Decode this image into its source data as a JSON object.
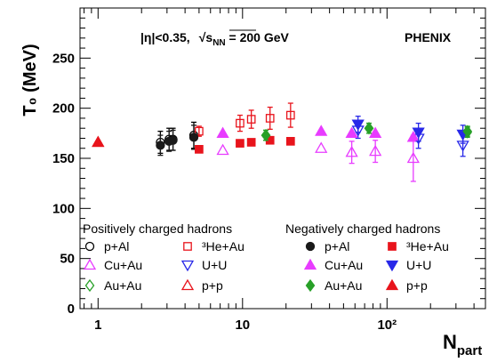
{
  "chart_data": {
    "type": "scatter",
    "experiment_label": "PHENIX",
    "condition_label_eta": "|η|<0.35,",
    "condition_label_sqrt": "√",
    "condition_label_s": "s",
    "condition_label_s_sub": "NN",
    "condition_label_energy": " = 200 GeV",
    "xlabel_main": "N",
    "xlabel_sub": "part",
    "ylabel": "T₀ (MeV)",
    "x_scale": "log",
    "xlim": [
      0.75,
      480
    ],
    "ylim": [
      0,
      300
    ],
    "x_ticks": [
      {
        "value": 1,
        "label": "1"
      },
      {
        "value": 10,
        "label": "10"
      },
      {
        "value": 100,
        "label": "10²"
      }
    ],
    "y_ticks": [
      {
        "value": 0,
        "label": "0"
      },
      {
        "value": 50,
        "label": "50"
      },
      {
        "value": 100,
        "label": "100"
      },
      {
        "value": 150,
        "label": "150"
      },
      {
        "value": 200,
        "label": "200"
      },
      {
        "value": 250,
        "label": "250"
      }
    ],
    "legend_groups": [
      {
        "title": "Positively charged hadrons",
        "placement": "lower-left"
      },
      {
        "title": "Negatively charged hadrons",
        "placement": "lower-right"
      }
    ],
    "series": [
      {
        "name": "p+Al",
        "charge": "positive",
        "marker": "circle-open",
        "color": "#000000",
        "points": [
          {
            "x": 2.7,
            "y": 166,
            "err": 11
          },
          {
            "x": 3.1,
            "y": 169,
            "err": 11
          },
          {
            "x": 3.3,
            "y": 169,
            "err": 11
          },
          {
            "x": 4.6,
            "y": 173,
            "err": 13
          }
        ]
      },
      {
        "name": "³He+Au",
        "charge": "positive",
        "marker": "square-open",
        "color": "#e8141c",
        "points": [
          {
            "x": 5.0,
            "y": 177,
            "err": 5
          },
          {
            "x": 9.6,
            "y": 185,
            "err": 8
          },
          {
            "x": 11.5,
            "y": 189,
            "err": 9
          },
          {
            "x": 15.5,
            "y": 190,
            "err": 11
          },
          {
            "x": 21.5,
            "y": 193,
            "err": 12
          }
        ]
      },
      {
        "name": "Cu+Au",
        "charge": "positive",
        "marker": "triangle-up-open",
        "color": "#e83cff",
        "points": [
          {
            "x": 7.3,
            "y": 158,
            "err": 0
          },
          {
            "x": 35,
            "y": 160,
            "err": 0
          },
          {
            "x": 57,
            "y": 156,
            "err": 11
          },
          {
            "x": 83,
            "y": 157,
            "err": 11
          },
          {
            "x": 152,
            "y": 150,
            "err": 23
          }
        ]
      },
      {
        "name": "U+U",
        "charge": "positive",
        "marker": "triangle-down-open",
        "color": "#2828e8",
        "points": [
          {
            "x": 63,
            "y": 178,
            "err": 8
          },
          {
            "x": 165,
            "y": 170,
            "err": 10
          },
          {
            "x": 335,
            "y": 163,
            "err": 11
          }
        ]
      },
      {
        "name": "Au+Au",
        "charge": "positive",
        "marker": "diamond-open",
        "color": "#28a028",
        "points": [
          {
            "x": 14.5,
            "y": 173,
            "err": 5
          },
          {
            "x": 75,
            "y": 180,
            "err": 5
          },
          {
            "x": 360,
            "y": 176,
            "err": 5
          }
        ]
      },
      {
        "name": "p+p",
        "charge": "positive",
        "marker": "triangle-up-open",
        "color": "#e8141c",
        "points": [
          {
            "x": 1.0,
            "y": 166,
            "err": 0
          }
        ]
      },
      {
        "name": "p+Al",
        "charge": "negative",
        "marker": "circle-filled",
        "color": "#1a1a1a",
        "points": [
          {
            "x": 2.7,
            "y": 163,
            "err": 10
          },
          {
            "x": 3.1,
            "y": 167,
            "err": 10
          },
          {
            "x": 3.3,
            "y": 168,
            "err": 10
          },
          {
            "x": 4.6,
            "y": 171,
            "err": 12
          }
        ]
      },
      {
        "name": "³He+Au",
        "charge": "negative",
        "marker": "square-filled",
        "color": "#e8141c",
        "points": [
          {
            "x": 5.0,
            "y": 159,
            "err": 0
          },
          {
            "x": 9.6,
            "y": 165,
            "err": 0
          },
          {
            "x": 11.5,
            "y": 166,
            "err": 0
          },
          {
            "x": 15.5,
            "y": 168,
            "err": 0
          },
          {
            "x": 21.5,
            "y": 167,
            "err": 0
          }
        ]
      },
      {
        "name": "Cu+Au",
        "charge": "negative",
        "marker": "triangle-up-filled",
        "color": "#e83cff",
        "points": [
          {
            "x": 7.3,
            "y": 175,
            "err": 0
          },
          {
            "x": 35,
            "y": 177,
            "err": 0
          },
          {
            "x": 57,
            "y": 175,
            "err": 0
          },
          {
            "x": 83,
            "y": 175,
            "err": 0
          },
          {
            "x": 152,
            "y": 171,
            "err": 0
          }
        ]
      },
      {
        "name": "U+U",
        "charge": "negative",
        "marker": "triangle-down-filled",
        "color": "#2828e8",
        "points": [
          {
            "x": 63,
            "y": 184,
            "err": 8
          },
          {
            "x": 165,
            "y": 176,
            "err": 9
          },
          {
            "x": 335,
            "y": 174,
            "err": 9
          }
        ]
      },
      {
        "name": "Au+Au",
        "charge": "negative",
        "marker": "diamond-filled",
        "color": "#28a028",
        "points": [
          {
            "x": 14.5,
            "y": 173,
            "err": 5
          },
          {
            "x": 75,
            "y": 180,
            "err": 5
          },
          {
            "x": 360,
            "y": 177,
            "err": 5
          }
        ]
      },
      {
        "name": "p+p",
        "charge": "negative",
        "marker": "triangle-up-filled",
        "color": "#e8141c",
        "points": [
          {
            "x": 1.0,
            "y": 166,
            "err": 0
          }
        ]
      }
    ]
  }
}
